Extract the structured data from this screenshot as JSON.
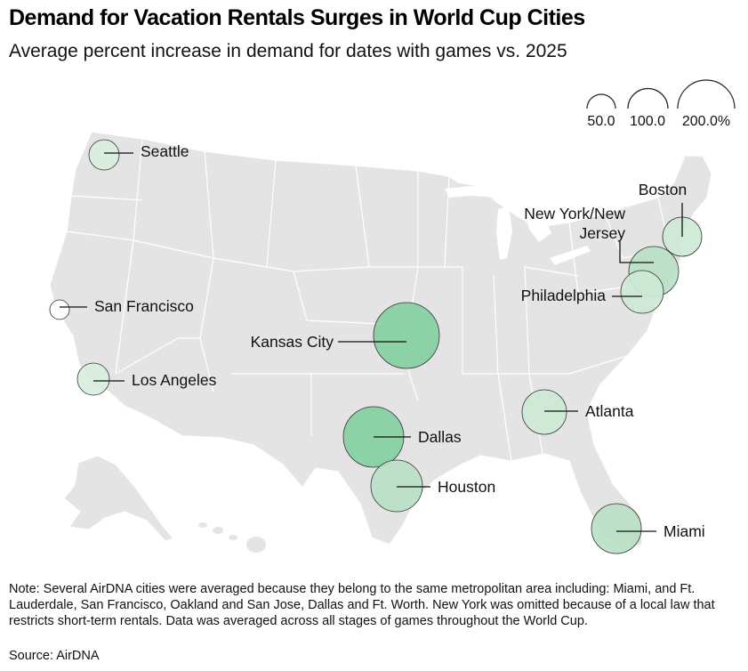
{
  "header": {
    "title": "Demand for Vacation Rentals Surges in World Cup Cities",
    "subtitle": "Average percent increase in demand for dates with games vs. 2025"
  },
  "legend": {
    "items": [
      {
        "label": "50.0",
        "value": 50
      },
      {
        "label": "100.0",
        "value": 100
      },
      {
        "label": "200.0%",
        "value": 200
      }
    ]
  },
  "cities": [
    {
      "name": "Seattle",
      "label": "Seattle",
      "increase_pct": 40,
      "color": "#d9efdf"
    },
    {
      "name": "San Francisco",
      "label": "San Francisco",
      "increase_pct": 15,
      "color": "#ffffff"
    },
    {
      "name": "Los Angeles",
      "label": "Los Angeles",
      "increase_pct": 40,
      "color": "#d9efdf"
    },
    {
      "name": "Kansas City",
      "label": "Kansas City",
      "increase_pct": 180,
      "color": "#86cfa1"
    },
    {
      "name": "Dallas",
      "label": "Dallas",
      "increase_pct": 145,
      "color": "#86cfa1"
    },
    {
      "name": "Houston",
      "label": "Houston",
      "increase_pct": 110,
      "color": "#b9e1c6"
    },
    {
      "name": "Atlanta",
      "label": "Atlanta",
      "increase_pct": 75,
      "color": "#cde9d5"
    },
    {
      "name": "Miami",
      "label": "Miami",
      "increase_pct": 100,
      "color": "#b9e1c6"
    },
    {
      "name": "Boston",
      "label": "Boston",
      "increase_pct": 40,
      "color": "#cde9d5"
    },
    {
      "name": "New York/New Jersey",
      "label_line1": "New York/New",
      "label_line2": "Jersey",
      "increase_pct": 90,
      "color": "#b9e1c6"
    },
    {
      "name": "Philadelphia",
      "label": "Philadelphia",
      "increase_pct": 70,
      "color": "#cde9d5"
    }
  ],
  "note": "Note: Several AirDNA cities were averaged because they belong to the same metropolitan area including: Miami, and Ft. Lauderdale, San Francisco, Oakland and San Jose, Dallas and Ft. Worth. New York was omitted because of a local law that restricts short-term rentals. Data was averaged across all stages of games throughout the World Cup.",
  "source": "Source: AirDNA",
  "colors": {
    "land": "#e4e4e4",
    "state_border": "#ffffff",
    "circle_stroke": "#333333"
  }
}
